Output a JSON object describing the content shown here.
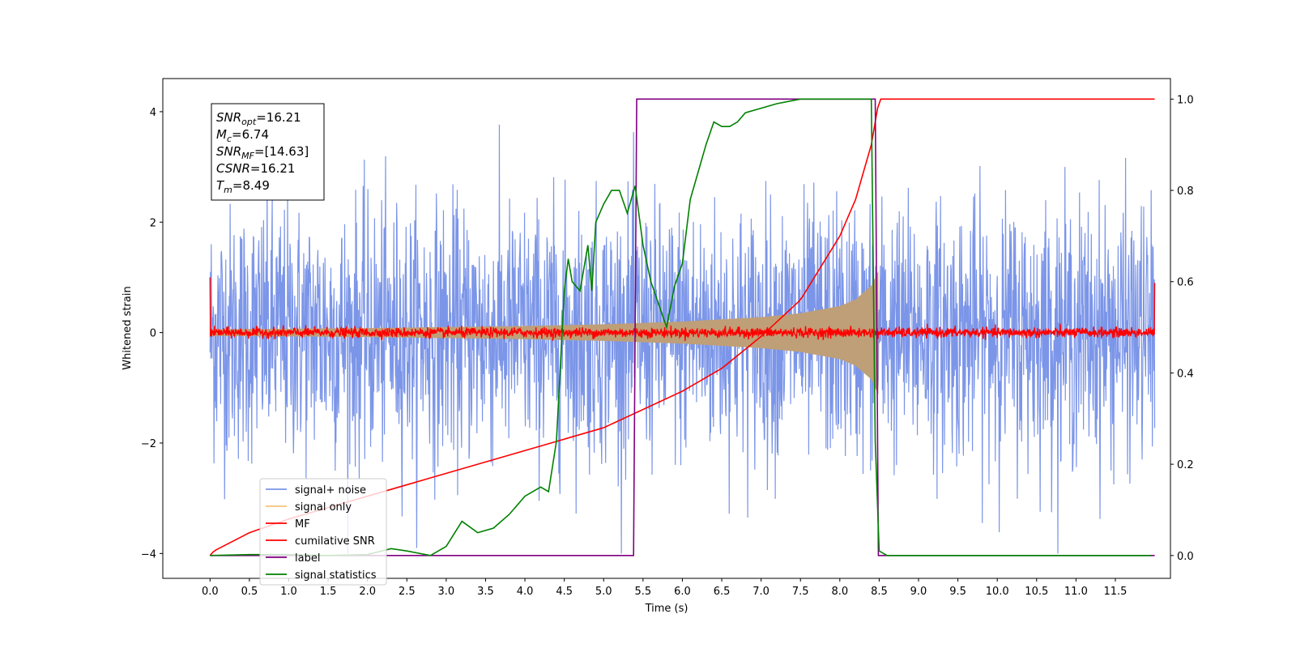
{
  "chart_data": {
    "type": "line",
    "xlabel": "Time (s)",
    "ylabel_left": "Whitened strain",
    "ylabel_right": "",
    "xlim": [
      -0.6,
      12.2
    ],
    "ylim_left": [
      -4.45,
      4.6
    ],
    "ylim_right": [
      -0.05,
      1.045
    ],
    "x_ticks": [
      0.0,
      0.5,
      1.0,
      1.5,
      2.0,
      2.5,
      3.0,
      3.5,
      4.0,
      4.5,
      5.0,
      5.5,
      6.0,
      6.5,
      7.0,
      7.5,
      8.0,
      8.5,
      9.0,
      9.5,
      10.0,
      10.5,
      11.0,
      11.5
    ],
    "x_tick_labels": [
      "0.0",
      "0.5",
      "1.0",
      "1.5",
      "2.0",
      "2.5",
      "3.0",
      "3.5",
      "4.0",
      "4.5",
      "5.0",
      "5.5",
      "6.0",
      "6.5",
      "7.0",
      "7.5",
      "8.0",
      "8.5",
      "9.0",
      "9.5",
      "10.0",
      "10.5",
      "11.0",
      "11.5"
    ],
    "y_ticks_left": [
      -4,
      -2,
      0,
      2,
      4
    ],
    "y_tick_labels_left": [
      "−4",
      "−2",
      "0",
      "2",
      "4"
    ],
    "y_ticks_right": [
      0.0,
      0.2,
      0.4,
      0.6,
      0.8,
      1.0
    ],
    "y_tick_labels_right": [
      "0.0",
      "0.2",
      "0.4",
      "0.6",
      "0.8",
      "1.0"
    ],
    "legend_position": "lower-left",
    "grid": false,
    "series": [
      {
        "name": "signal+ noise",
        "axis": "left",
        "color": "#7b95e8",
        "description_type": "noisy",
        "x_range": [
          0.0,
          12.0
        ],
        "envelope_min": -4.0,
        "envelope_max": 4.15
      },
      {
        "name": "signal only",
        "axis": "left",
        "color": "#f5c27a",
        "fill_color": "#bf9f77",
        "x": [
          0.0,
          1.0,
          2.0,
          3.0,
          4.0,
          5.0,
          6.0,
          7.0,
          7.5,
          8.0,
          8.2,
          8.4,
          8.49
        ],
        "amplitude": [
          0.06,
          0.07,
          0.08,
          0.1,
          0.12,
          0.15,
          0.2,
          0.28,
          0.35,
          0.48,
          0.6,
          0.85,
          1.12
        ]
      },
      {
        "name": "MF",
        "axis": "left",
        "color": "#ff0000",
        "description_type": "noisy",
        "x_range": [
          0.0,
          12.0
        ],
        "center": 0.0,
        "noise_amplitude": 0.1
      },
      {
        "name": "cumilative SNR",
        "axis": "right",
        "color": "#ff0000",
        "x": [
          0.0,
          0.05,
          0.5,
          1.0,
          2.0,
          3.0,
          4.0,
          5.0,
          5.5,
          6.0,
          6.5,
          7.0,
          7.5,
          8.0,
          8.2,
          8.4,
          8.5,
          9.0,
          10.0,
          11.0,
          12.0
        ],
        "y": [
          0.0,
          0.01,
          0.05,
          0.08,
          0.13,
          0.18,
          0.23,
          0.28,
          0.32,
          0.36,
          0.41,
          0.48,
          0.56,
          0.7,
          0.78,
          0.9,
          1.0,
          1.0,
          1.0,
          1.0,
          1.0
        ]
      },
      {
        "name": "label",
        "axis": "right",
        "color": "#800080",
        "x": [
          0.0,
          5.38,
          5.42,
          8.45,
          8.49,
          12.0
        ],
        "y": [
          0.0,
          0.0,
          1.0,
          1.0,
          0.0,
          0.0
        ]
      },
      {
        "name": "signal statistics",
        "axis": "right",
        "color": "#008000",
        "x": [
          0.0,
          0.5,
          1.0,
          1.5,
          2.0,
          2.3,
          2.5,
          2.8,
          3.0,
          3.2,
          3.4,
          3.6,
          3.8,
          4.0,
          4.1,
          4.2,
          4.3,
          4.4,
          4.5,
          4.55,
          4.6,
          4.7,
          4.8,
          4.85,
          4.9,
          5.0,
          5.1,
          5.2,
          5.3,
          5.4,
          5.5,
          5.6,
          5.7,
          5.8,
          5.9,
          6.0,
          6.1,
          6.2,
          6.3,
          6.4,
          6.5,
          6.6,
          6.7,
          6.8,
          7.0,
          7.2,
          7.5,
          8.0,
          8.3,
          8.4,
          8.45,
          8.5,
          8.6,
          9.0,
          10.0,
          11.0,
          11.95
        ],
        "y": [
          0.0,
          0.002,
          0.002,
          0.0,
          0.002,
          0.015,
          0.01,
          0.0,
          0.02,
          0.075,
          0.05,
          0.06,
          0.09,
          0.13,
          0.14,
          0.15,
          0.14,
          0.25,
          0.58,
          0.65,
          0.6,
          0.58,
          0.68,
          0.58,
          0.73,
          0.77,
          0.8,
          0.8,
          0.75,
          0.81,
          0.68,
          0.6,
          0.55,
          0.5,
          0.59,
          0.64,
          0.78,
          0.84,
          0.9,
          0.95,
          0.94,
          0.94,
          0.95,
          0.97,
          0.98,
          0.99,
          1.0,
          1.0,
          1.0,
          1.0,
          0.25,
          0.01,
          0.0,
          0.0,
          0.0,
          0.0,
          0.0
        ]
      }
    ],
    "annotation": {
      "lines": [
        {
          "sym": "SNR",
          "sub": "opt",
          "val": "=16.21"
        },
        {
          "sym": "M",
          "sub": "c",
          "val": "=6.74"
        },
        {
          "sym": "SNR",
          "sub": "MF",
          "val": "=[14.63]"
        },
        {
          "sym": "CSNR",
          "sub": "",
          "val": "=16.21"
        },
        {
          "sym": "T",
          "sub": "m",
          "val": "=8.49"
        }
      ]
    }
  }
}
